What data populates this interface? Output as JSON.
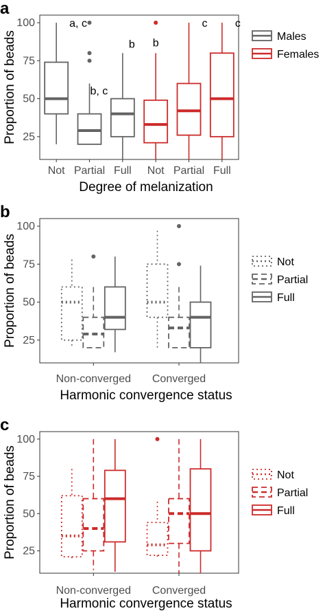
{
  "chart_data": [
    {
      "panel": "a",
      "type": "boxplot",
      "xlabel": "Degree of melanization",
      "ylabel": "Proportion of beads",
      "ylim": [
        10,
        105
      ],
      "yticks": [
        25,
        50,
        75,
        100
      ],
      "categories": [
        "Not",
        "Partial",
        "Full",
        "Not",
        "Partial",
        "Full"
      ],
      "legend_position": "right",
      "legend": [
        {
          "label": "Males",
          "color": "#636363"
        },
        {
          "label": "Females",
          "color": "#cc2a2a"
        }
      ],
      "boxes": [
        {
          "group": "Males",
          "x": "Not",
          "min": 20,
          "q1": 40,
          "median": 50,
          "q3": 74,
          "max": 100,
          "outliers": [],
          "sig": "a, c"
        },
        {
          "group": "Males",
          "x": "Partial",
          "min": 20,
          "q1": 20,
          "median": 29,
          "q3": 40,
          "max": 60,
          "outliers": [
            75,
            80,
            100
          ],
          "sig": "b, c"
        },
        {
          "group": "Males",
          "x": "Full",
          "min": 10,
          "q1": 25,
          "median": 40,
          "q3": 50,
          "max": 80,
          "outliers": [],
          "sig": "b"
        },
        {
          "group": "Females",
          "x": "Not",
          "min": 10,
          "q1": 21,
          "median": 33,
          "q3": 49,
          "max": 80,
          "outliers": [
            100
          ],
          "sig": "b"
        },
        {
          "group": "Females",
          "x": "Partial",
          "min": 10,
          "q1": 26,
          "median": 42,
          "q3": 60,
          "max": 100,
          "outliers": [],
          "sig": "c"
        },
        {
          "group": "Females",
          "x": "Full",
          "min": 10,
          "q1": 25,
          "median": 50,
          "q3": 80,
          "max": 100,
          "outliers": [],
          "sig": "c"
        }
      ]
    },
    {
      "panel": "b",
      "type": "boxplot",
      "xlabel": "Harmonic convergence status",
      "ylabel": "Proportion of beads",
      "ylim": [
        10,
        105
      ],
      "yticks": [
        25,
        50,
        75,
        100
      ],
      "categories": [
        "Non-converged",
        "Converged"
      ],
      "color": "#636363",
      "legend_position": "right",
      "legend": [
        {
          "label": "Not",
          "linetype": "dotted"
        },
        {
          "label": "Partial",
          "linetype": "dashed"
        },
        {
          "label": "Full",
          "linetype": "solid"
        }
      ],
      "boxes": [
        {
          "x": "Non-converged",
          "type": "Not",
          "min": 20,
          "q1": 25,
          "median": 50,
          "q3": 60,
          "max": 78,
          "outliers": []
        },
        {
          "x": "Non-converged",
          "type": "Partial",
          "min": 20,
          "q1": 20,
          "median": 29,
          "q3": 40,
          "max": 60,
          "outliers": [
            80
          ]
        },
        {
          "x": "Non-converged",
          "type": "Full",
          "min": 17,
          "q1": 32,
          "median": 40,
          "q3": 60,
          "max": 80,
          "outliers": []
        },
        {
          "x": "Converged",
          "type": "Not",
          "min": 20,
          "q1": 40,
          "median": 50,
          "q3": 75,
          "max": 97,
          "outliers": []
        },
        {
          "x": "Converged",
          "type": "Partial",
          "min": 20,
          "q1": 20,
          "median": 33,
          "q3": 40,
          "max": 60,
          "outliers": [
            75,
            100
          ]
        },
        {
          "x": "Converged",
          "type": "Full",
          "min": 10,
          "q1": 20,
          "median": 40,
          "q3": 50,
          "max": 74,
          "outliers": []
        }
      ]
    },
    {
      "panel": "c",
      "type": "boxplot",
      "xlabel": "Harmonic convergence status",
      "ylabel": "Proportion of beads",
      "ylim": [
        10,
        105
      ],
      "yticks": [
        25,
        50,
        75,
        100
      ],
      "categories": [
        "Non-converged",
        "Converged"
      ],
      "color": "#cc2a2a",
      "legend_position": "right",
      "legend": [
        {
          "label": "Not",
          "linetype": "dotted"
        },
        {
          "label": "Partial",
          "linetype": "dashed"
        },
        {
          "label": "Full",
          "linetype": "solid"
        }
      ],
      "boxes": [
        {
          "x": "Non-converged",
          "type": "Not",
          "min": 20,
          "q1": 21,
          "median": 35,
          "q3": 62,
          "max": 80,
          "outliers": []
        },
        {
          "x": "Non-converged",
          "type": "Partial",
          "min": 12,
          "q1": 25,
          "median": 40,
          "q3": 60,
          "max": 100,
          "outliers": []
        },
        {
          "x": "Non-converged",
          "type": "Full",
          "min": 11,
          "q1": 31,
          "median": 60,
          "q3": 79,
          "max": 100,
          "outliers": []
        },
        {
          "x": "Converged",
          "type": "Not",
          "min": 20,
          "q1": 22,
          "median": 29,
          "q3": 44,
          "max": 58,
          "outliers": [
            100
          ]
        },
        {
          "x": "Converged",
          "type": "Partial",
          "min": 10,
          "q1": 30,
          "median": 50,
          "q3": 60,
          "max": 100,
          "outliers": []
        },
        {
          "x": "Converged",
          "type": "Full",
          "min": 10,
          "q1": 25,
          "median": 50,
          "q3": 80,
          "max": 100,
          "outliers": []
        }
      ]
    }
  ]
}
